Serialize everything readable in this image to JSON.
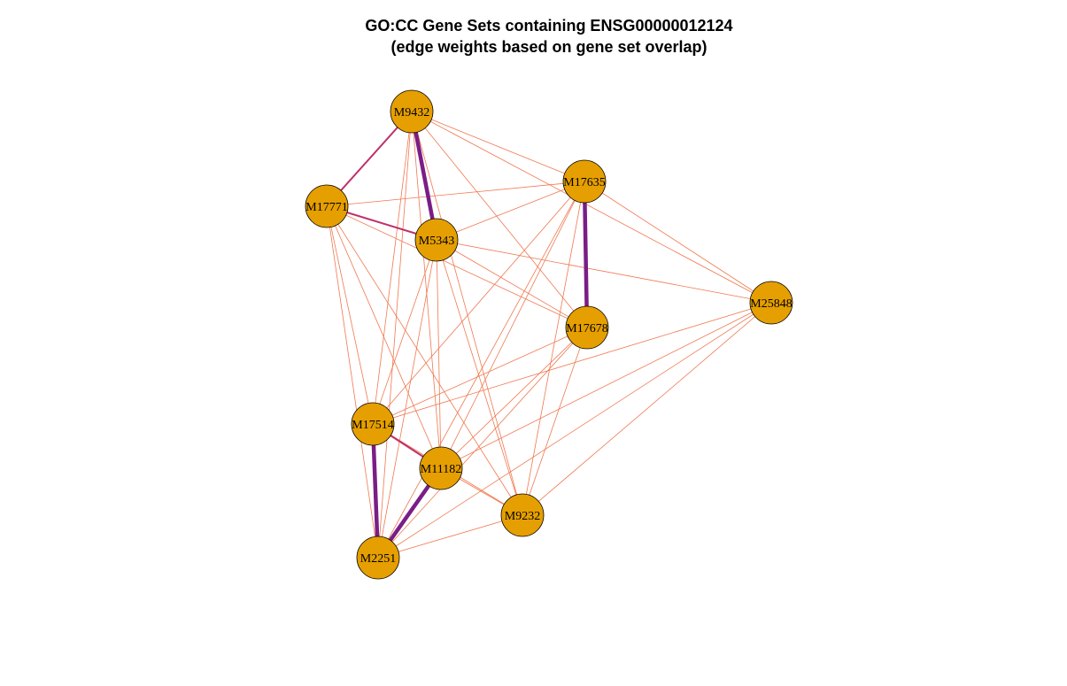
{
  "title": {
    "line1": "GO:CC Gene Sets containing ENSG00000012124",
    "line2": "(edge weights based on gene set overlap)"
  },
  "colors": {
    "node_fill": "#E69F00",
    "node_stroke": "#000000",
    "edge_weak": "#F07850",
    "edge_medium": "#C0306A",
    "edge_strong": "#7A1E86",
    "background": "#FFFFFF"
  },
  "nodes": [
    {
      "id": "M9432",
      "label": "M9432"
    },
    {
      "id": "M17771",
      "label": "M17771"
    },
    {
      "id": "M5343",
      "label": "M5343"
    },
    {
      "id": "M17635",
      "label": "M17635"
    },
    {
      "id": "M25848",
      "label": "M25848"
    },
    {
      "id": "M17678",
      "label": "M17678"
    },
    {
      "id": "M17514",
      "label": "M17514"
    },
    {
      "id": "M11182",
      "label": "M11182"
    },
    {
      "id": "M9232",
      "label": "M9232"
    },
    {
      "id": "M2251",
      "label": "M2251"
    }
  ],
  "edges": [
    {
      "source": "M9432",
      "target": "M5343",
      "strength": "strong"
    },
    {
      "source": "M17635",
      "target": "M17678",
      "strength": "strong"
    },
    {
      "source": "M17514",
      "target": "M2251",
      "strength": "strong"
    },
    {
      "source": "M11182",
      "target": "M2251",
      "strength": "strong"
    },
    {
      "source": "M9432",
      "target": "M17771",
      "strength": "medium"
    },
    {
      "source": "M17771",
      "target": "M5343",
      "strength": "medium"
    },
    {
      "source": "M17514",
      "target": "M11182",
      "strength": "medium"
    },
    {
      "source": "M9432",
      "target": "M17635",
      "strength": "weak"
    },
    {
      "source": "M9432",
      "target": "M25848",
      "strength": "weak"
    },
    {
      "source": "M9432",
      "target": "M17678",
      "strength": "weak"
    },
    {
      "source": "M9432",
      "target": "M17514",
      "strength": "weak"
    },
    {
      "source": "M9432",
      "target": "M11182",
      "strength": "weak"
    },
    {
      "source": "M9432",
      "target": "M9232",
      "strength": "weak"
    },
    {
      "source": "M9432",
      "target": "M2251",
      "strength": "weak"
    },
    {
      "source": "M17771",
      "target": "M17635",
      "strength": "weak"
    },
    {
      "source": "M17771",
      "target": "M17678",
      "strength": "weak"
    },
    {
      "source": "M17771",
      "target": "M17514",
      "strength": "weak"
    },
    {
      "source": "M17771",
      "target": "M11182",
      "strength": "weak"
    },
    {
      "source": "M17771",
      "target": "M9232",
      "strength": "weak"
    },
    {
      "source": "M17771",
      "target": "M2251",
      "strength": "weak"
    },
    {
      "source": "M5343",
      "target": "M17635",
      "strength": "weak"
    },
    {
      "source": "M5343",
      "target": "M25848",
      "strength": "weak"
    },
    {
      "source": "M5343",
      "target": "M17678",
      "strength": "weak"
    },
    {
      "source": "M5343",
      "target": "M17514",
      "strength": "weak"
    },
    {
      "source": "M5343",
      "target": "M11182",
      "strength": "weak"
    },
    {
      "source": "M5343",
      "target": "M9232",
      "strength": "weak"
    },
    {
      "source": "M5343",
      "target": "M2251",
      "strength": "weak"
    },
    {
      "source": "M17635",
      "target": "M25848",
      "strength": "weak"
    },
    {
      "source": "M17635",
      "target": "M17514",
      "strength": "weak"
    },
    {
      "source": "M17635",
      "target": "M11182",
      "strength": "weak"
    },
    {
      "source": "M17635",
      "target": "M9232",
      "strength": "weak"
    },
    {
      "source": "M17635",
      "target": "M2251",
      "strength": "weak"
    },
    {
      "source": "M25848",
      "target": "M17514",
      "strength": "weak"
    },
    {
      "source": "M25848",
      "target": "M11182",
      "strength": "weak"
    },
    {
      "source": "M25848",
      "target": "M9232",
      "strength": "weak"
    },
    {
      "source": "M25848",
      "target": "M2251",
      "strength": "weak"
    },
    {
      "source": "M17678",
      "target": "M17514",
      "strength": "weak"
    },
    {
      "source": "M17678",
      "target": "M11182",
      "strength": "weak"
    },
    {
      "source": "M17678",
      "target": "M9232",
      "strength": "weak"
    },
    {
      "source": "M17678",
      "target": "M2251",
      "strength": "weak"
    },
    {
      "source": "M17514",
      "target": "M9232",
      "strength": "weak"
    },
    {
      "source": "M11182",
      "target": "M9232",
      "strength": "weak"
    },
    {
      "source": "M9232",
      "target": "M2251",
      "strength": "weak"
    }
  ]
}
